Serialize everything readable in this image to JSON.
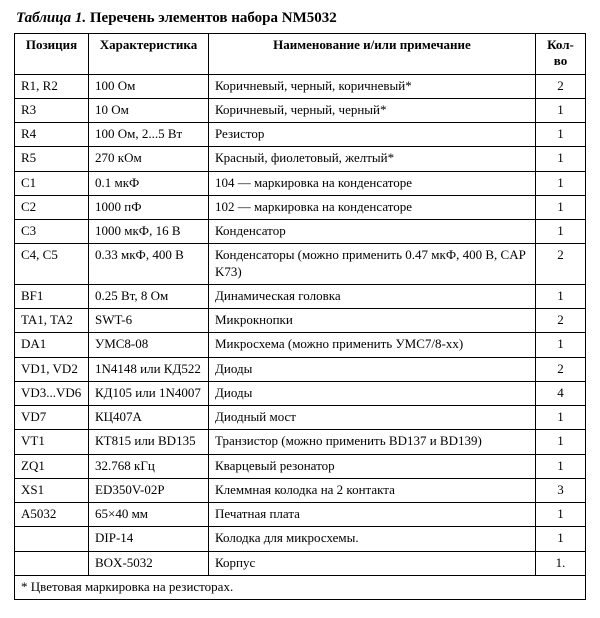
{
  "title": {
    "label": "Таблица 1.",
    "rest": " Перечень элементов набора NM5032"
  },
  "columns": {
    "pos": "Позиция",
    "char": "Характеристика",
    "desc": "Наименование и/или примечание",
    "qty": "Кол-во"
  },
  "rows": [
    {
      "pos": "R1, R2",
      "char": "100 Ом",
      "desc": "Коричневый, черный, коричневый*",
      "qty": "2"
    },
    {
      "pos": "R3",
      "char": "10 Ом",
      "desc": "Коричневый, черный, черный*",
      "qty": "1"
    },
    {
      "pos": "R4",
      "char": "100 Ом, 2...5 Вт",
      "desc": "Резистор",
      "qty": "1"
    },
    {
      "pos": "R5",
      "char": "270 кОм",
      "desc": "Красный, фиолетовый, желтый*",
      "qty": "1"
    },
    {
      "pos": "C1",
      "char": "0.1 мкФ",
      "desc": "104 — маркировка на конденсаторе",
      "qty": "1"
    },
    {
      "pos": "C2",
      "char": "1000 пФ",
      "desc": "102 — маркировка на конденсаторе",
      "qty": "1"
    },
    {
      "pos": "C3",
      "char": "1000 мкФ, 16 В",
      "desc": "Конденсатор",
      "qty": "1"
    },
    {
      "pos": "C4, C5",
      "char": "0.33 мкФ, 400 В",
      "desc": "Конденсаторы (можно применить 0.47 мкФ, 400 В, CAP K73)",
      "qty": "2"
    },
    {
      "pos": "BF1",
      "char": "0.25 Вт, 8 Ом",
      "desc": "Динамическая головка",
      "qty": "1"
    },
    {
      "pos": "TA1, TA2",
      "char": "SWT-6",
      "desc": "Микрокнопки",
      "qty": "2"
    },
    {
      "pos": "DA1",
      "char": "УМС8-08",
      "desc": "Микросхема (можно применить УМС7/8-xx)",
      "qty": "1"
    },
    {
      "pos": "VD1, VD2",
      "char": "1N4148 или КД522",
      "desc": "Диоды",
      "qty": "2"
    },
    {
      "pos": "VD3...VD6",
      "char": "КД105 или 1N4007",
      "desc": "Диоды",
      "qty": "4"
    },
    {
      "pos": "VD7",
      "char": "КЦ407А",
      "desc": "Диодный мост",
      "qty": "1"
    },
    {
      "pos": "VT1",
      "char": "КТ815 или BD135",
      "desc": "Транзистор (можно применить BD137 и BD139)",
      "qty": "1"
    },
    {
      "pos": "ZQ1",
      "char": "32.768 кГц",
      "desc": "Кварцевый резонатор",
      "qty": "1"
    },
    {
      "pos": "XS1",
      "char": "ED350V-02P",
      "desc": "Клеммная колодка на 2 контакта",
      "qty": "3"
    },
    {
      "pos": "A5032",
      "char": "65×40 мм",
      "desc": "Печатная плата",
      "qty": "1"
    },
    {
      "pos": "",
      "char": "DIP-14",
      "desc": "Колодка для микросхемы.",
      "qty": "1"
    },
    {
      "pos": "",
      "char": "BOX-5032",
      "desc": "Корпус",
      "qty": "1."
    }
  ],
  "footnote": "* Цветовая маркировка на резисторах."
}
